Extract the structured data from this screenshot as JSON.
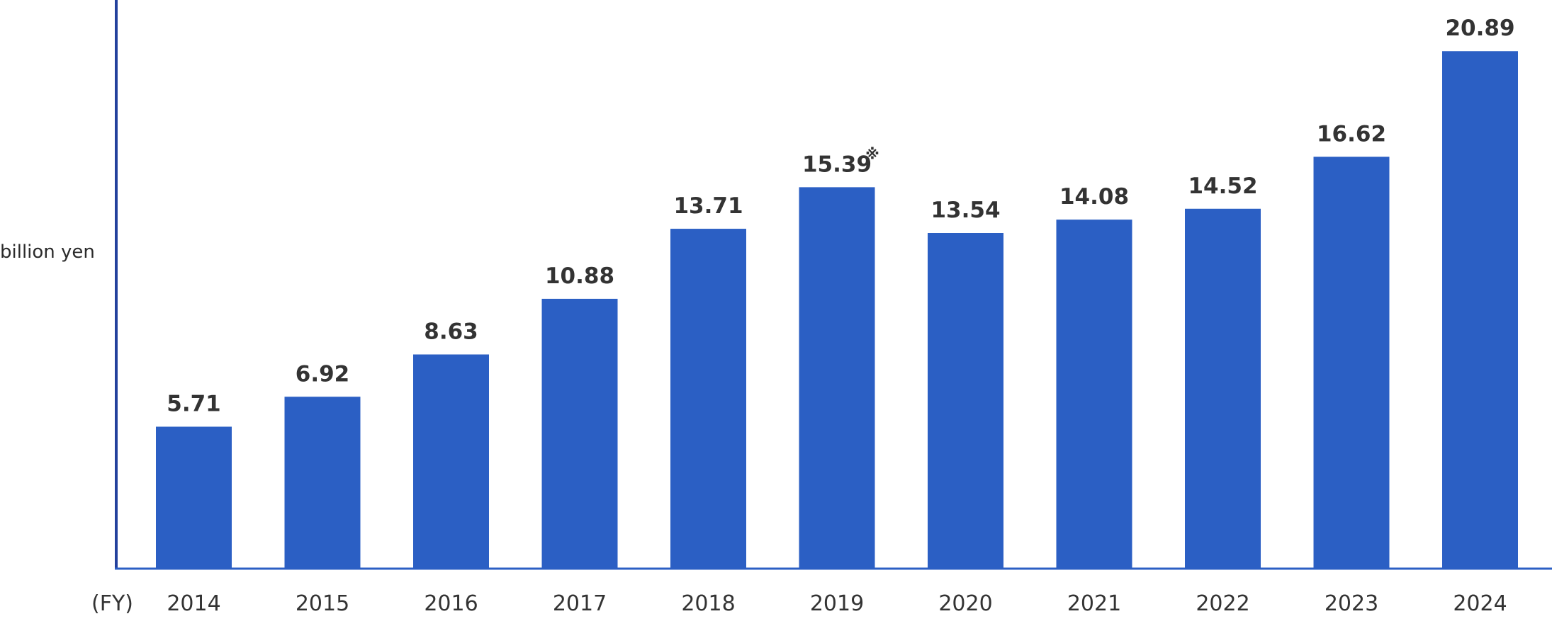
{
  "chart_data": {
    "type": "bar",
    "title": "",
    "ylabel": "billion yen",
    "xlabel": "(FY)",
    "categories": [
      "2014",
      "2015",
      "2016",
      "2017",
      "2018",
      "2019",
      "2020",
      "2021",
      "2022",
      "2023",
      "2024"
    ],
    "values": [
      5.71,
      6.92,
      8.63,
      10.88,
      13.71,
      15.39,
      13.54,
      14.08,
      14.52,
      16.62,
      20.89
    ],
    "data_labels": [
      "5.71",
      "6.92",
      "8.63",
      "10.88",
      "13.71",
      "15.39",
      "13.54",
      "14.08",
      "14.52",
      "16.62",
      "20.89"
    ],
    "label_notes": [
      "",
      "",
      "",
      "",
      "",
      "※",
      "",
      "",
      "",
      "",
      ""
    ],
    "ylim": [
      0,
      22.5
    ],
    "grid": false,
    "legend": "none",
    "colors": {
      "bar": "#2b5fc4",
      "axis": "#23409c",
      "text": "#333333"
    }
  }
}
